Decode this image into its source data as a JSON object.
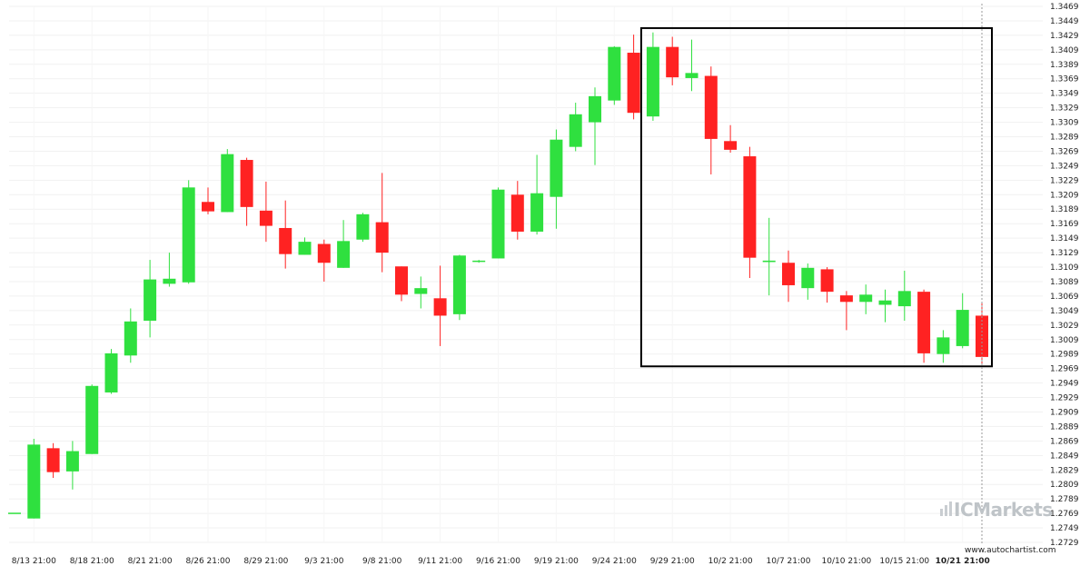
{
  "chart_data": {
    "type": "candlestick",
    "y_ticks": [
      "1.3469",
      "1.3449",
      "1.3429",
      "1.3409",
      "1.3389",
      "1.3369",
      "1.3349",
      "1.3329",
      "1.3309",
      "1.3289",
      "1.3269",
      "1.3249",
      "1.3229",
      "1.3209",
      "1.3189",
      "1.3169",
      "1.3149",
      "1.3129",
      "1.3109",
      "1.3089",
      "1.3069",
      "1.3049",
      "1.3029",
      "1.3009",
      "1.2989",
      "1.2969",
      "1.2949",
      "1.2929",
      "1.2909",
      "1.2889",
      "1.2869",
      "1.2849",
      "1.2829",
      "1.2809",
      "1.2789",
      "1.2769",
      "1.2749",
      "1.2729"
    ],
    "x_labels": [
      "8/13 21:00",
      "8/18 21:00",
      "8/21 21:00",
      "8/26 21:00",
      "8/29 21:00",
      "9/3 21:00",
      "9/8 21:00",
      "9/11 21:00",
      "9/16 21:00",
      "9/19 21:00",
      "9/24 21:00",
      "9/29 21:00",
      "10/2 21:00",
      "10/7 21:00",
      "10/10 21:00",
      "10/15 21:00",
      "10/21 21:00"
    ],
    "x_label_bold_index": 16,
    "ylim": [
      1.2729,
      1.3469
    ],
    "colors": {
      "up": "#2fe03f",
      "down": "#ff2222",
      "box": "#000000"
    },
    "candles": [
      {
        "o": 1.277,
        "h": 1.277,
        "l": 1.277,
        "c": 1.277
      },
      {
        "o": 1.2762,
        "h": 1.2872,
        "l": 1.2762,
        "c": 1.2864
      },
      {
        "o": 1.2859,
        "h": 1.2866,
        "l": 1.2818,
        "c": 1.2826
      },
      {
        "o": 1.2827,
        "h": 1.2869,
        "l": 1.2802,
        "c": 1.2855
      },
      {
        "o": 1.2851,
        "h": 1.2947,
        "l": 1.2851,
        "c": 1.2945
      },
      {
        "o": 1.2936,
        "h": 1.2996,
        "l": 1.2934,
        "c": 1.299
      },
      {
        "o": 1.2987,
        "h": 1.3052,
        "l": 1.2977,
        "c": 1.3034
      },
      {
        "o": 1.3035,
        "h": 1.3119,
        "l": 1.3012,
        "c": 1.3092
      },
      {
        "o": 1.3086,
        "h": 1.3129,
        "l": 1.3082,
        "c": 1.3093
      },
      {
        "o": 1.3088,
        "h": 1.3229,
        "l": 1.3086,
        "c": 1.3219
      },
      {
        "o": 1.3199,
        "h": 1.3219,
        "l": 1.3182,
        "c": 1.3186
      },
      {
        "o": 1.3185,
        "h": 1.3272,
        "l": 1.3185,
        "c": 1.3265
      },
      {
        "o": 1.3257,
        "h": 1.326,
        "l": 1.3166,
        "c": 1.3192
      },
      {
        "o": 1.3187,
        "h": 1.3227,
        "l": 1.3144,
        "c": 1.3166
      },
      {
        "o": 1.3163,
        "h": 1.3201,
        "l": 1.3107,
        "c": 1.3127
      },
      {
        "o": 1.3126,
        "h": 1.315,
        "l": 1.3126,
        "c": 1.3144
      },
      {
        "o": 1.3141,
        "h": 1.3147,
        "l": 1.3089,
        "c": 1.3115
      },
      {
        "o": 1.3108,
        "h": 1.3174,
        "l": 1.3108,
        "c": 1.3145
      },
      {
        "o": 1.3147,
        "h": 1.3184,
        "l": 1.3144,
        "c": 1.3182
      },
      {
        "o": 1.3171,
        "h": 1.3239,
        "l": 1.3102,
        "c": 1.3129
      },
      {
        "o": 1.311,
        "h": 1.311,
        "l": 1.3062,
        "c": 1.3071
      },
      {
        "o": 1.3072,
        "h": 1.3096,
        "l": 1.3052,
        "c": 1.308
      },
      {
        "o": 1.3066,
        "h": 1.3111,
        "l": 1.3,
        "c": 1.3042
      },
      {
        "o": 1.3044,
        "h": 1.3126,
        "l": 1.3036,
        "c": 1.3125
      },
      {
        "o": 1.3117,
        "h": 1.3119,
        "l": 1.3115,
        "c": 1.3118
      },
      {
        "o": 1.3121,
        "h": 1.3219,
        "l": 1.3121,
        "c": 1.3216
      },
      {
        "o": 1.3209,
        "h": 1.3228,
        "l": 1.3147,
        "c": 1.3158
      },
      {
        "o": 1.3158,
        "h": 1.3264,
        "l": 1.3154,
        "c": 1.3211
      },
      {
        "o": 1.3206,
        "h": 1.3299,
        "l": 1.3162,
        "c": 1.3285
      },
      {
        "o": 1.3275,
        "h": 1.3336,
        "l": 1.3269,
        "c": 1.332
      },
      {
        "o": 1.3309,
        "h": 1.3357,
        "l": 1.325,
        "c": 1.3345
      },
      {
        "o": 1.3339,
        "h": 1.3414,
        "l": 1.3333,
        "c": 1.3413
      },
      {
        "o": 1.3405,
        "h": 1.343,
        "l": 1.3313,
        "c": 1.3322
      },
      {
        "o": 1.3317,
        "h": 1.3433,
        "l": 1.3311,
        "c": 1.3413
      },
      {
        "o": 1.3413,
        "h": 1.3427,
        "l": 1.336,
        "c": 1.3371
      },
      {
        "o": 1.337,
        "h": 1.3423,
        "l": 1.3352,
        "c": 1.3377
      },
      {
        "o": 1.3373,
        "h": 1.3386,
        "l": 1.3237,
        "c": 1.3286
      },
      {
        "o": 1.3283,
        "h": 1.3305,
        "l": 1.3267,
        "c": 1.3271
      },
      {
        "o": 1.3262,
        "h": 1.3275,
        "l": 1.3094,
        "c": 1.3122
      },
      {
        "o": 1.3116,
        "h": 1.3177,
        "l": 1.307,
        "c": 1.3118
      },
      {
        "o": 1.3115,
        "h": 1.3132,
        "l": 1.3061,
        "c": 1.3084
      },
      {
        "o": 1.308,
        "h": 1.3114,
        "l": 1.3064,
        "c": 1.3108
      },
      {
        "o": 1.3106,
        "h": 1.3109,
        "l": 1.306,
        "c": 1.3075
      },
      {
        "o": 1.307,
        "h": 1.3076,
        "l": 1.3022,
        "c": 1.3061
      },
      {
        "o": 1.3061,
        "h": 1.3085,
        "l": 1.3044,
        "c": 1.3071
      },
      {
        "o": 1.3057,
        "h": 1.3078,
        "l": 1.3033,
        "c": 1.3063
      },
      {
        "o": 1.3055,
        "h": 1.3104,
        "l": 1.3035,
        "c": 1.3076
      },
      {
        "o": 1.3075,
        "h": 1.3078,
        "l": 1.2977,
        "c": 1.299
      },
      {
        "o": 1.2989,
        "h": 1.3022,
        "l": 1.2977,
        "c": 1.3012
      },
      {
        "o": 1.3,
        "h": 1.3073,
        "l": 1.2997,
        "c": 1.305
      },
      {
        "o": 1.3042,
        "h": 1.3061,
        "l": 1.2974,
        "c": 1.2985
      }
    ],
    "highlight_box": {
      "start_index": 33,
      "end_index": 50,
      "high": 1.3439,
      "low": 1.2972
    },
    "current_index": 50
  },
  "watermark": {
    "brand_text": "ICMarkets",
    "icon": "bar-chart-logo-icon"
  },
  "credit": {
    "text": "www.autochartist.com"
  }
}
